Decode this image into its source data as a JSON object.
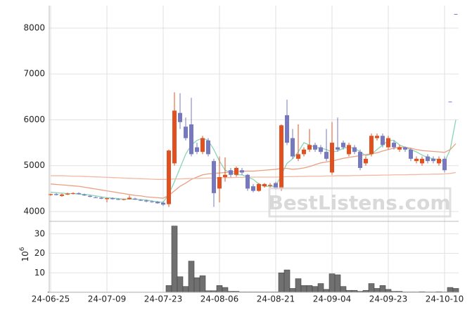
{
  "chart_data": [
    {
      "type": "candlestick",
      "up_color": "#e2501f",
      "down_color": "#7679c0",
      "grid": true,
      "ylim": [
        3785,
        8490
      ],
      "yticks": [
        4000,
        5000,
        6000,
        7000,
        8000
      ],
      "open": [
        4360,
        4380,
        4340,
        4370,
        4390,
        4400,
        4370,
        4340,
        4310,
        4300,
        4270,
        4290,
        4270,
        4260,
        4270,
        4280,
        4250,
        4240,
        4220,
        4210,
        4190,
        4160,
        5050,
        6150,
        5850,
        5900,
        5400,
        5300,
        5550,
        5100,
        4500,
        4750,
        4900,
        4800,
        4900,
        4800,
        4550,
        4450,
        4550,
        4560,
        4620,
        4500,
        6100,
        5600,
        5150,
        5250,
        5350,
        5450,
        5400,
        5300,
        4850,
        5400,
        5500,
        5250,
        5400,
        5300,
        5050,
        5250,
        5600,
        5650,
        5400,
        5500,
        5350,
        5400,
        5350,
        5100,
        5050,
        5200,
        5150,
        5050,
        5150,
        6390,
        8300
      ],
      "high": [
        4390,
        4400,
        4390,
        4410,
        4420,
        4420,
        4390,
        4360,
        4330,
        4320,
        4300,
        4310,
        4290,
        4280,
        4350,
        4300,
        4270,
        4260,
        4240,
        4230,
        4220,
        5350,
        6600,
        6580,
        6050,
        6480,
        5500,
        5650,
        5600,
        5150,
        5200,
        5180,
        4950,
        4980,
        4950,
        4820,
        4600,
        4620,
        4620,
        4620,
        4650,
        5900,
        6440,
        5800,
        5900,
        5400,
        5800,
        5500,
        5450,
        5800,
        5950,
        6050,
        5550,
        5500,
        5450,
        5350,
        5200,
        5700,
        5700,
        5700,
        5650,
        5550,
        5450,
        5420,
        5380,
        5200,
        5200,
        5250,
        5200,
        5200,
        5200,
        6390,
        8300
      ],
      "low": [
        4340,
        4350,
        4320,
        4360,
        4370,
        4370,
        4340,
        4310,
        4290,
        4270,
        4200,
        4260,
        4250,
        4240,
        4260,
        4250,
        4230,
        4200,
        4190,
        4170,
        4120,
        4100,
        5000,
        5800,
        5550,
        5200,
        5250,
        5250,
        5200,
        4100,
        4200,
        4650,
        4750,
        4760,
        4800,
        4450,
        4420,
        4430,
        4520,
        4520,
        4480,
        4450,
        5450,
        5150,
        5100,
        5200,
        5300,
        5300,
        5250,
        5100,
        4800,
        5300,
        5350,
        5200,
        5250,
        4900,
        5000,
        5200,
        5550,
        5400,
        5350,
        5350,
        5300,
        5300,
        5100,
        5050,
        5000,
        5050,
        5050,
        5000,
        4850,
        6390,
        8300
      ],
      "close": [
        4380,
        4360,
        4370,
        4390,
        4400,
        4380,
        4350,
        4320,
        4300,
        4280,
        4290,
        4270,
        4260,
        4270,
        4300,
        4260,
        4240,
        4220,
        4210,
        4180,
        4150,
        5330,
        6200,
        5950,
        5600,
        5250,
        5300,
        5600,
        5250,
        4400,
        4750,
        4800,
        4800,
        4950,
        4850,
        4500,
        4450,
        4600,
        4600,
        4580,
        4500,
        5880,
        5500,
        5200,
        5250,
        5350,
        5450,
        5350,
        5300,
        5150,
        5500,
        5350,
        5400,
        5450,
        5300,
        4950,
        5150,
        5650,
        5650,
        5450,
        5600,
        5400,
        5400,
        5350,
        5150,
        5150,
        5150,
        5100,
        5100,
        5150,
        4900,
        6390,
        8300
      ],
      "series": [
        {
          "color": "#86d6b4",
          "values": [
            4420,
            4410,
            4400,
            4390,
            4390,
            4380,
            4370,
            4360,
            4340,
            4320,
            4300,
            4290,
            4280,
            4270,
            4270,
            4270,
            4260,
            4250,
            4230,
            4210,
            4200,
            4380,
            4650,
            4950,
            5250,
            5450,
            5550,
            5600,
            5550,
            5350,
            5100,
            4900,
            4850,
            4800,
            4800,
            4750,
            4700,
            4600,
            4550,
            4550,
            4550,
            4800,
            5050,
            5150,
            5300,
            5500,
            5450,
            5400,
            5380,
            5350,
            5300,
            5320,
            5380,
            5400,
            5380,
            5300,
            5220,
            5250,
            5350,
            5450,
            5550,
            5550,
            5450,
            5400,
            5350,
            5300,
            5230,
            5180,
            5150,
            5130,
            5080,
            5350,
            6000
          ]
        },
        {
          "color": "#eb9f82",
          "values": [
            4600,
            4590,
            4580,
            4570,
            4560,
            4550,
            4530,
            4510,
            4490,
            4470,
            4450,
            4430,
            4410,
            4390,
            4370,
            4350,
            4340,
            4320,
            4310,
            4300,
            4290,
            4350,
            4450,
            4550,
            4620,
            4700,
            4750,
            4800,
            4820,
            4830,
            4840,
            4850,
            4860,
            4870,
            4880,
            4880,
            4880,
            4890,
            4900,
            4910,
            4920,
            4940,
            4940,
            4920,
            4930,
            4950,
            4980,
            5020,
            5060,
            5080,
            5100,
            5130,
            5160,
            5180,
            5200,
            5220,
            5240,
            5260,
            5280,
            5320,
            5350,
            5380,
            5400,
            5400,
            5380,
            5350,
            5330,
            5320,
            5310,
            5300,
            5290,
            5350,
            5480
          ]
        },
        {
          "color": "#f0b9a3",
          "values": [
            4780,
            4780,
            4780,
            4775,
            4770,
            4770,
            4765,
            4760,
            4755,
            4750,
            4745,
            4740,
            4735,
            4730,
            4725,
            4720,
            4715,
            4710,
            4705,
            4700,
            4700,
            4700,
            4710,
            4710,
            4715,
            4720,
            4720,
            4725,
            4730,
            4730,
            4735,
            4740,
            4740,
            4745,
            4745,
            4750,
            4750,
            4750,
            4750,
            4750,
            4750,
            4755,
            4760,
            4760,
            4765,
            4765,
            4770,
            4770,
            4770,
            4775,
            4775,
            4780,
            4780,
            4780,
            4785,
            4785,
            4790,
            4790,
            4790,
            4795,
            4795,
            4800,
            4800,
            4800,
            4805,
            4805,
            4810,
            4810,
            4815,
            4815,
            4820,
            4830,
            4850
          ]
        }
      ]
    },
    {
      "type": "bar",
      "color": "#707070",
      "grid": true,
      "y_label": {
        "base": "10",
        "exponent": "6"
      },
      "ylim": [
        0,
        36.4
      ],
      "yticks": [
        10,
        20,
        30
      ],
      "categories": [
        "24-06-25",
        null,
        null,
        null,
        null,
        null,
        null,
        null,
        null,
        null,
        "24-07-09",
        null,
        null,
        null,
        null,
        null,
        null,
        null,
        null,
        null,
        "24-07-23",
        null,
        null,
        null,
        null,
        null,
        null,
        null,
        null,
        null,
        "24-08-06",
        null,
        null,
        null,
        null,
        null,
        null,
        null,
        null,
        null,
        "24-08-21",
        null,
        null,
        null,
        null,
        null,
        null,
        null,
        null,
        null,
        "24-09-04",
        null,
        null,
        null,
        null,
        null,
        null,
        null,
        null,
        null,
        "24-09-23",
        null,
        null,
        null,
        null,
        null,
        null,
        null,
        null,
        null,
        "24-10-10",
        null,
        null
      ],
      "values": [
        0.1,
        0.1,
        0.1,
        0.1,
        0.1,
        0.1,
        0.1,
        0.1,
        0.1,
        0.1,
        0.1,
        0.1,
        0.1,
        0.1,
        0.1,
        0.1,
        0.1,
        0.1,
        0.1,
        0.1,
        0.1,
        3.5,
        34,
        8,
        3,
        16,
        7.5,
        8.5,
        0.8,
        0.8,
        3.5,
        2.5,
        0.5,
        0.5,
        0.2,
        0.2,
        0.2,
        0.2,
        0.2,
        0.2,
        0.2,
        10,
        11.5,
        2,
        7,
        3.5,
        3.5,
        3,
        4.5,
        1.5,
        9.5,
        9,
        3,
        1,
        1,
        0.5,
        1,
        4.5,
        2,
        3.5,
        1.5,
        0.5,
        0.5,
        0.2,
        0.2,
        0.2,
        0.3,
        0.2,
        0.2,
        0.3,
        0.2,
        2.5,
        2
      ]
    }
  ],
  "watermark": "BestListens.com"
}
